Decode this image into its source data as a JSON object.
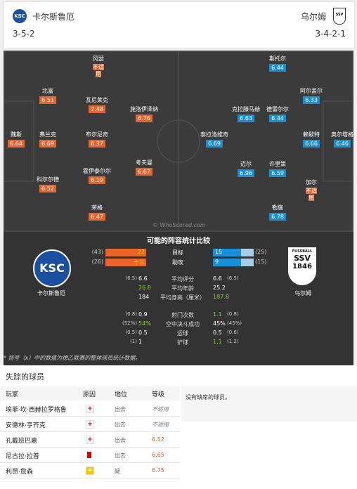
{
  "header": {
    "home": {
      "name": "卡尔斯鲁厄",
      "formation": "3-5-2",
      "logo": "KSC"
    },
    "away": {
      "name": "乌尔姆",
      "formation": "3-4-2-1",
      "logo": "SSV"
    }
  },
  "pitch": {
    "home_players": [
      {
        "name": "冈瑟",
        "rating": "不适用"
      },
      {
        "name": "北富",
        "rating": "6.51"
      },
      {
        "name": "瓦尼莱克",
        "rating": "7.48"
      },
      {
        "name": "施洛伊泽纳",
        "rating": "6.76"
      },
      {
        "name": "魏斯",
        "rating": "6.64"
      },
      {
        "name": "弗兰克",
        "rating": "6.69"
      },
      {
        "name": "布尔尼奇",
        "rating": "6.37"
      },
      {
        "name": "考夫曼",
        "rating": "6.67"
      },
      {
        "name": "科尔尔德",
        "rating": "6.52"
      },
      {
        "name": "霍伊泰尔尔",
        "rating": "6.19"
      },
      {
        "name": "荣格",
        "rating": "6.47"
      }
    ],
    "away_players": [
      {
        "name": "斯托尔",
        "rating": "6.44"
      },
      {
        "name": "阿尔盖尔",
        "rating": "6.33"
      },
      {
        "name": "克拉滕马赫",
        "rating": "6.63"
      },
      {
        "name": "德雷尔尔",
        "rating": "6.44"
      },
      {
        "name": "泰拉洛维奇",
        "rating": "6.69"
      },
      {
        "name": "赖歇特",
        "rating": "6.66"
      },
      {
        "name": "奥尔塔格",
        "rating": "6.46"
      },
      {
        "name": "迈尔",
        "rating": "6.96"
      },
      {
        "name": "许里策",
        "rating": "6.59"
      },
      {
        "name": "加尔",
        "rating": "不适用"
      },
      {
        "name": "勒施",
        "rating": "6.78"
      }
    ],
    "watermark": "© WhoScored.com"
  },
  "comparison": {
    "title": "可能的阵容统计比较",
    "home_name": "卡尔斯鲁厄",
    "away_name": "乌尔姆",
    "away_logo_top": "FUSSBALL",
    "away_logo_year": "1846",
    "bars": [
      {
        "label": "目标",
        "home": 22,
        "home_league": "(43)",
        "away": 15,
        "away_league": "(25)"
      },
      {
        "label": "助攻",
        "home": 13,
        "home_label": "十三",
        "home_league": "(26)",
        "away": 9,
        "away_league": "(15)"
      }
    ],
    "stats": [
      {
        "label": "平均评分",
        "home": "6.6",
        "home_league": "(6.5)",
        "away": "6.6",
        "away_league": "(6.5)"
      },
      {
        "label": "平均年龄",
        "home": "26.8",
        "away": "25.2"
      },
      {
        "label": "平均身高（厘米）",
        "home": "184",
        "away": "187.8"
      },
      {
        "label": "射门次数",
        "home": "0.9",
        "home_league": "(0.8)",
        "away": "1.1",
        "away_league": "(0.8)"
      },
      {
        "label": "空中决斗成功",
        "home": "54%",
        "home_league": "(52%)",
        "away": "45%",
        "away_league": "(45%)"
      },
      {
        "label": "运球",
        "home": "0.5",
        "home_league": "(0.5)",
        "away": "0.5",
        "away_league": "(0.6)"
      },
      {
        "label": "铲球",
        "home": "1",
        "home_league": "(1)",
        "away": "1.1",
        "away_league": "(1.2)"
      }
    ],
    "footnote": "* 括号（x）中的数值为德乙联赛的整体球员统计数据。"
  },
  "missing": {
    "title": "失踪的球员",
    "columns": [
      "玩家",
      "原因",
      "地位",
      "等级"
    ],
    "rows": [
      {
        "player": "埃菲·坎·西赫拉罗格鲁",
        "status": "出去",
        "rating": "不适用"
      },
      {
        "player": "安德林·亨齐克",
        "status": "出去",
        "rating": "不适用"
      },
      {
        "player": "孔戴班巴嘉",
        "status": "出去",
        "rating": "6.52"
      },
      {
        "player": "尼古拉·拉普",
        "status": "出去",
        "rating": "6.65"
      },
      {
        "player": "利昂·詹森",
        "status": "疑",
        "rating": "6.75"
      }
    ],
    "away_note": "没有缺席的球员。"
  }
}
